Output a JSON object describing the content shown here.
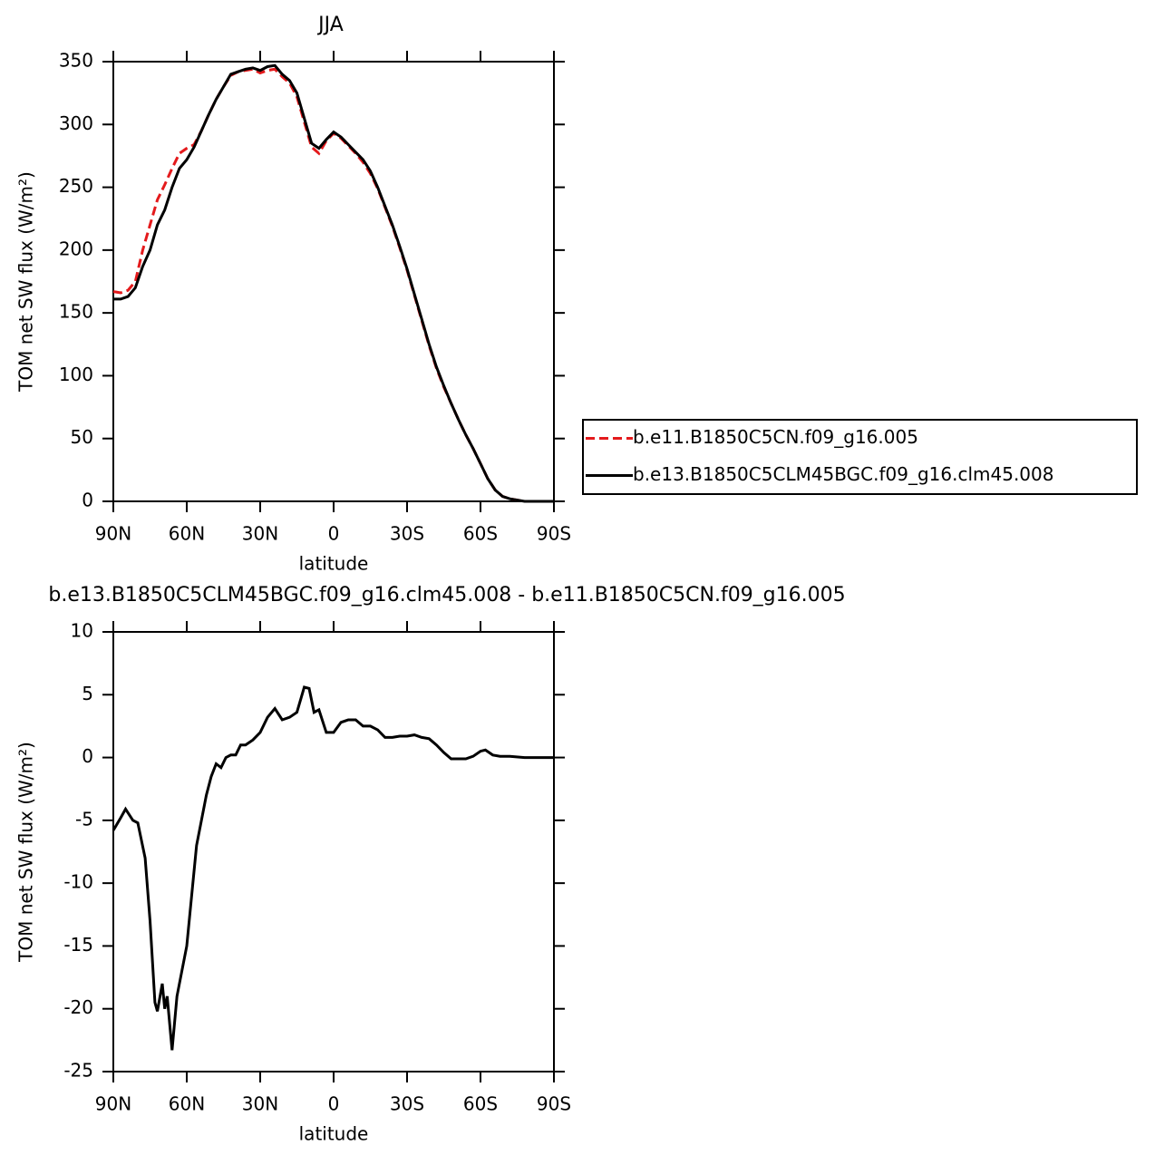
{
  "chart_data": [
    {
      "type": "line",
      "title": "JJA",
      "xlabel": "latitude",
      "ylabel": "TOM net SW flux (W/m²)",
      "xlim": [
        90,
        -90
      ],
      "ylim": [
        0,
        350
      ],
      "xticks": [
        {
          "value": 90,
          "label": "90N"
        },
        {
          "value": 60,
          "label": "60N"
        },
        {
          "value": 30,
          "label": "30N"
        },
        0,
        {
          "value": -30,
          "label": "30S"
        },
        {
          "value": -60,
          "label": "60S"
        },
        {
          "value": -90,
          "label": "90S"
        }
      ],
      "yticks": [
        0,
        50,
        100,
        150,
        200,
        250,
        300,
        350
      ],
      "x": [
        90,
        87,
        84,
        81,
        78,
        75,
        72,
        69,
        66,
        63,
        60,
        57,
        54,
        51,
        48,
        45,
        42,
        39,
        36,
        33,
        30,
        27,
        24,
        21,
        18,
        15,
        12,
        9,
        6,
        3,
        0,
        -3,
        -6,
        -9,
        -12,
        -15,
        -18,
        -21,
        -24,
        -27,
        -30,
        -33,
        -36,
        -39,
        -42,
        -45,
        -48,
        -51,
        -54,
        -57,
        -60,
        -63,
        -66,
        -69,
        -72,
        -75,
        -78,
        -81,
        -84,
        -87,
        -90
      ],
      "series": [
        {
          "name": "b.e11.B1850C5CN.f09_g16.005",
          "color": "#e41a1c",
          "style": "dashed",
          "values": [
            167,
            166,
            168,
            175,
            200,
            220,
            240,
            252,
            265,
            277,
            281,
            284,
            295,
            308,
            320,
            330,
            339,
            342,
            343,
            344,
            341,
            343,
            344,
            338,
            333,
            322,
            302,
            282,
            277,
            287,
            293,
            289,
            283,
            277,
            270,
            261,
            249,
            234,
            219,
            202,
            184,
            164,
            144,
            124,
            106,
            91,
            78,
            65,
            53,
            42,
            30,
            18,
            9,
            4,
            2,
            1,
            0,
            0,
            0,
            0,
            0
          ]
        },
        {
          "name": "b.e13.B1850C5CLM45BGC.f09_g16.clm45.008",
          "color": "#000000",
          "style": "solid",
          "values": [
            161,
            161,
            163,
            170,
            187,
            200,
            220,
            232,
            250,
            265,
            272,
            282,
            295,
            308,
            320,
            330,
            340,
            342,
            344,
            345,
            343,
            346,
            347,
            340,
            335,
            325,
            305,
            285,
            281,
            288,
            294,
            290,
            284,
            278,
            272,
            263,
            250,
            235,
            220,
            203,
            185,
            165,
            145,
            125,
            107,
            92,
            78,
            65,
            53,
            42,
            30,
            18,
            9,
            4,
            2,
            1,
            0,
            0,
            0,
            0,
            0
          ]
        }
      ]
    },
    {
      "type": "line",
      "title": "b.e13.B1850C5CLM45BGC.f09_g16.clm45.008 - b.e11.B1850C5CN.f09_g16.005",
      "xlabel": "latitude",
      "ylabel": "TOM net SW flux (W/m²)",
      "xlim": [
        90,
        -90
      ],
      "ylim": [
        -25,
        10
      ],
      "xticks": [
        {
          "value": 90,
          "label": "90N"
        },
        {
          "value": 60,
          "label": "60N"
        },
        {
          "value": 30,
          "label": "30N"
        },
        0,
        {
          "value": -30,
          "label": "30S"
        },
        {
          "value": -60,
          "label": "60S"
        },
        {
          "value": -90,
          "label": "90S"
        }
      ],
      "yticks": [
        -25,
        -20,
        -15,
        -10,
        -5,
        0,
        5,
        10
      ],
      "x": [
        90,
        87,
        85,
        82,
        80,
        77,
        75,
        73,
        72,
        70,
        69,
        68,
        66,
        64,
        62,
        60,
        58,
        56,
        54,
        52,
        50,
        48,
        46,
        44,
        42,
        40,
        38,
        36,
        33,
        30,
        27,
        24,
        21,
        18,
        15,
        12,
        10,
        8,
        6,
        3,
        0,
        -3,
        -6,
        -9,
        -12,
        -15,
        -18,
        -21,
        -24,
        -27,
        -30,
        -33,
        -36,
        -39,
        -42,
        -45,
        -48,
        -51,
        -54,
        -57,
        -60,
        -62,
        -65,
        -68,
        -72,
        -78,
        -84,
        -90
      ],
      "series": [
        {
          "color": "#000000",
          "style": "solid",
          "values": [
            -5.8,
            -4.8,
            -4.1,
            -5,
            -5.2,
            -8,
            -13,
            -19.5,
            -20.2,
            -18,
            -20,
            -19,
            -23.3,
            -19,
            -17,
            -15,
            -11,
            -7,
            -5,
            -3,
            -1.5,
            -0.5,
            -0.8,
            0,
            0.2,
            0.2,
            1,
            1,
            1.4,
            2,
            3.2,
            3.9,
            3,
            3.2,
            3.6,
            5.6,
            5.5,
            3.6,
            3.8,
            2,
            2,
            2.8,
            3,
            3,
            2.5,
            2.5,
            2.2,
            1.6,
            1.6,
            1.7,
            1.7,
            1.8,
            1.6,
            1.5,
            1,
            0.4,
            -0.1,
            -0.1,
            -0.1,
            0.1,
            0.5,
            0.6,
            0.2,
            0.1,
            0.1,
            0,
            0,
            0
          ]
        }
      ]
    }
  ]
}
